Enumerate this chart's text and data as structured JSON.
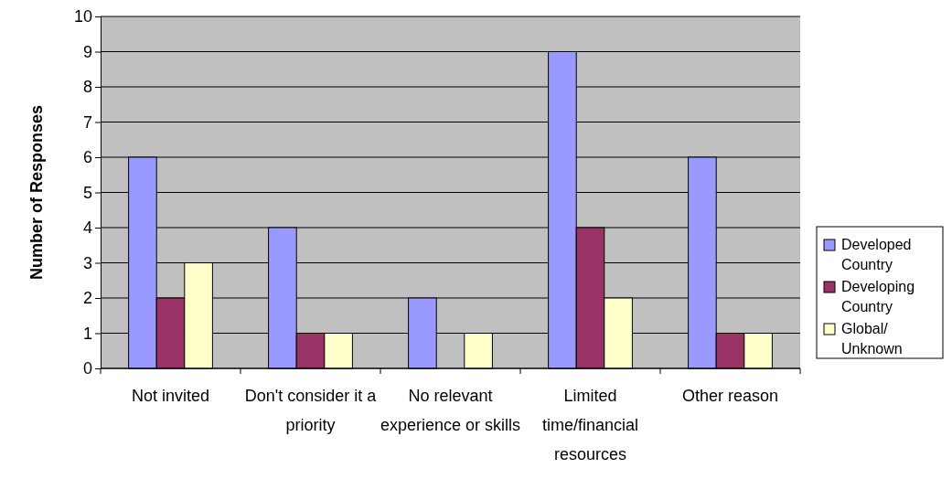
{
  "chart_data": {
    "type": "bar",
    "ylabel": "Number of Responses",
    "categories": [
      "Not invited",
      "Don't consider it a priority",
      "No relevant experience or skills",
      "Limited time/financial resources",
      "Other reason"
    ],
    "series": [
      {
        "name": "Developed Country",
        "color": "#9999ff",
        "values": [
          6,
          4,
          2,
          9,
          6
        ]
      },
      {
        "name": "Developing Country",
        "color": "#993366",
        "values": [
          2,
          1,
          0,
          4,
          1
        ]
      },
      {
        "name": "Global/ Unknown",
        "color": "#ffffcc",
        "values": [
          3,
          1,
          1,
          2,
          1
        ]
      }
    ],
    "ylim": [
      0,
      10
    ],
    "yticks": [
      0,
      1,
      2,
      3,
      4,
      5,
      6,
      7,
      8,
      9,
      10
    ],
    "grid": "y",
    "legend": "right"
  }
}
